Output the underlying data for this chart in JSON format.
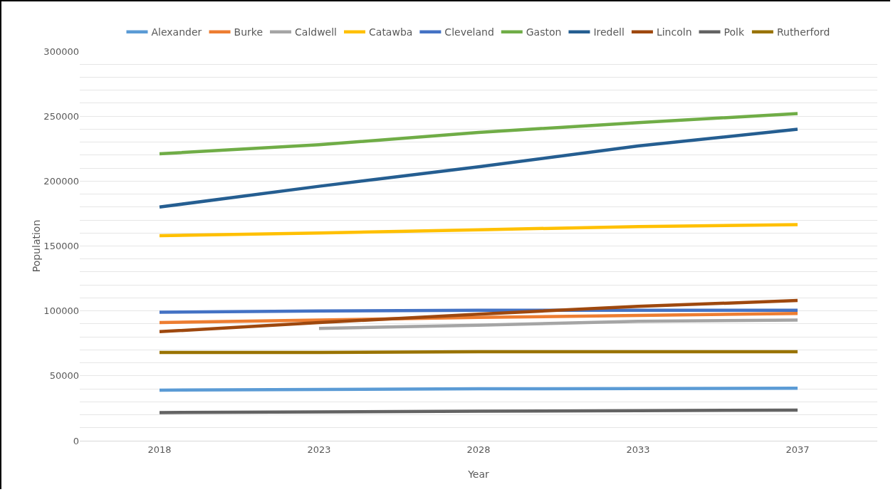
{
  "chart_data": {
    "type": "line",
    "xlabel": "Year",
    "ylabel": "Population",
    "categories": [
      "2018",
      "2023",
      "2028",
      "2033",
      "2037"
    ],
    "series": [
      {
        "name": "Alexander",
        "color": "#5b9bd5",
        "values": [
          39000,
          39500,
          40000,
          40200,
          40500
        ]
      },
      {
        "name": "Burke",
        "color": "#ed7d31",
        "values": [
          91000,
          93000,
          95000,
          96500,
          98000
        ]
      },
      {
        "name": "Caldwell",
        "color": "#a5a5a5",
        "values": [
          null,
          86500,
          89000,
          92000,
          93000
        ]
      },
      {
        "name": "Catawba",
        "color": "#ffc000",
        "values": [
          158000,
          160000,
          162500,
          165000,
          166500
        ]
      },
      {
        "name": "Cleveland",
        "color": "#4472c4",
        "values": [
          99000,
          100000,
          100500,
          100500,
          100500
        ]
      },
      {
        "name": "Gaston",
        "color": "#70ad47",
        "values": [
          221000,
          228000,
          237500,
          245000,
          252000
        ]
      },
      {
        "name": "Iredell",
        "color": "#255e91",
        "values": [
          180000,
          196000,
          211000,
          227000,
          240000
        ]
      },
      {
        "name": "Lincoln",
        "color": "#9e480e",
        "values": [
          84000,
          91000,
          97500,
          103500,
          108000
        ]
      },
      {
        "name": "Polk",
        "color": "#636363",
        "values": [
          21700,
          22200,
          22700,
          23200,
          23600
        ]
      },
      {
        "name": "Rutherford",
        "color": "#997300",
        "values": [
          68000,
          68000,
          68500,
          68500,
          68500
        ]
      }
    ],
    "ylim": [
      0,
      300000
    ],
    "yticks": [
      0,
      {
        "value": 10000,
        "label": null
      },
      {
        "value": 20000,
        "label": null
      },
      {
        "value": 30000,
        "label": null
      },
      {
        "value": 40000,
        "label": null
      },
      50000,
      {
        "value": 60000,
        "label": null
      },
      {
        "value": 70000,
        "label": null
      },
      {
        "value": 80000,
        "label": null
      },
      {
        "value": 90000,
        "label": null
      },
      100000,
      {
        "value": 110000,
        "label": null
      },
      {
        "value": 120000,
        "label": null
      },
      {
        "value": 130000,
        "label": null
      },
      {
        "value": 140000,
        "label": null
      },
      150000,
      {
        "value": 160000,
        "label": null
      },
      {
        "value": 170000,
        "label": null
      },
      {
        "value": 180000,
        "label": null
      },
      {
        "value": 190000,
        "label": null
      },
      200000,
      {
        "value": 210000,
        "label": null
      },
      {
        "value": 220000,
        "label": null
      },
      {
        "value": 230000,
        "label": null
      },
      {
        "value": 240000,
        "label": null
      },
      250000,
      {
        "value": 260000,
        "label": null
      },
      {
        "value": 270000,
        "label": null
      },
      {
        "value": 280000,
        "label": null
      },
      {
        "value": 290000,
        "label": null
      },
      300000
    ],
    "grid": true,
    "legend": "top",
    "marker": "none",
    "line_style": "solid"
  }
}
